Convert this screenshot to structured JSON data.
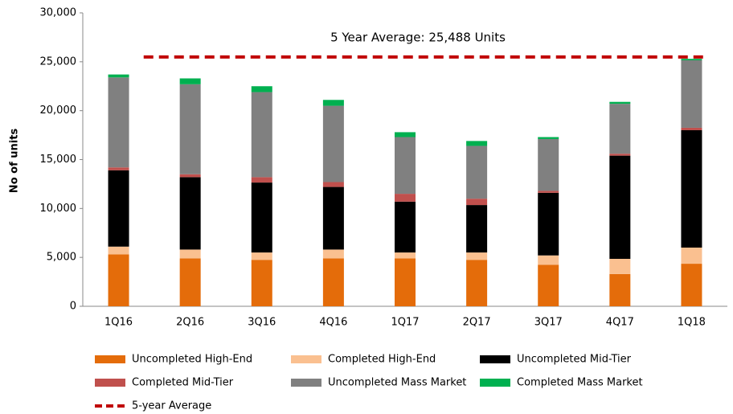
{
  "chart_data": {
    "type": "stacked-bar",
    "y_label": "No of units",
    "annotation": "5 Year Average: 25,488 Units",
    "categories": [
      "1Q16",
      "2Q16",
      "3Q16",
      "4Q16",
      "1Q17",
      "2Q17",
      "3Q17",
      "4Q17",
      "1Q18"
    ],
    "series": [
      {
        "name": "Uncompleted High-End",
        "color": "#e46c0a",
        "values": [
          5300,
          4900,
          4750,
          4900,
          4900,
          4750,
          4250,
          3300,
          4350
        ]
      },
      {
        "name": "Completed High-End",
        "color": "#fac090",
        "values": [
          800,
          900,
          750,
          900,
          600,
          750,
          950,
          1550,
          1650
        ]
      },
      {
        "name": "Uncompleted Mid-Tier",
        "color": "#000000",
        "values": [
          7800,
          7400,
          7150,
          6400,
          5200,
          4850,
          6400,
          10550,
          12000
        ]
      },
      {
        "name": "Completed Mid-Tier",
        "color": "#c0504d",
        "values": [
          300,
          300,
          550,
          500,
          800,
          650,
          200,
          200,
          250
        ]
      },
      {
        "name": "Uncompleted Mass Market",
        "color": "#808080",
        "values": [
          9200,
          9200,
          8700,
          7800,
          5800,
          5400,
          5300,
          5100,
          6900
        ]
      },
      {
        "name": "Completed Mass Market",
        "color": "#00b050",
        "values": [
          300,
          600,
          600,
          600,
          500,
          500,
          200,
          200,
          150
        ]
      }
    ],
    "average": {
      "name": "5-year Average",
      "value": 25488,
      "color": "#c00000"
    },
    "ylim": [
      0,
      30000
    ],
    "yticks": [
      0,
      {
        "value": 5000,
        "label": "5,000"
      },
      {
        "value": 10000,
        "label": "10,000"
      },
      {
        "value": 15000,
        "label": "15,000"
      },
      {
        "value": 20000,
        "label": "20,000"
      },
      {
        "value": 25000,
        "label": "25,000"
      },
      {
        "value": 30000,
        "label": "30,000"
      }
    ]
  }
}
